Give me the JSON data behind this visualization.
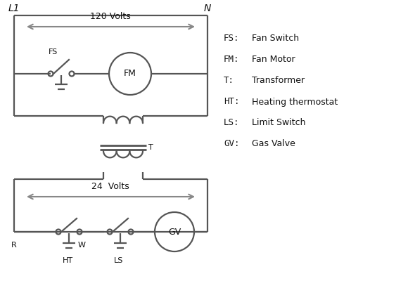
{
  "background_color": "#ffffff",
  "line_color": "#555555",
  "arrow_color": "#888888",
  "text_color": "#111111",
  "legend_items": [
    [
      "FS:",
      "Fan Switch"
    ],
    [
      "FM:",
      "Fan Motor"
    ],
    [
      "T:",
      "Transformer"
    ],
    [
      "HT:",
      "Heating thermostat"
    ],
    [
      "LS:",
      "Limit Switch"
    ],
    [
      "GV:",
      "Gas Valve"
    ]
  ],
  "L1_label": "L1",
  "N_label": "N",
  "volts120_label": "120 Volts",
  "volts24_label": "24  Volts",
  "T_label": "T",
  "FS_label": "FS",
  "FM_label": "FM",
  "R_label": "R",
  "W_label": "W",
  "HT_label": "HT",
  "LS_label": "LS",
  "GV_label": "GV"
}
